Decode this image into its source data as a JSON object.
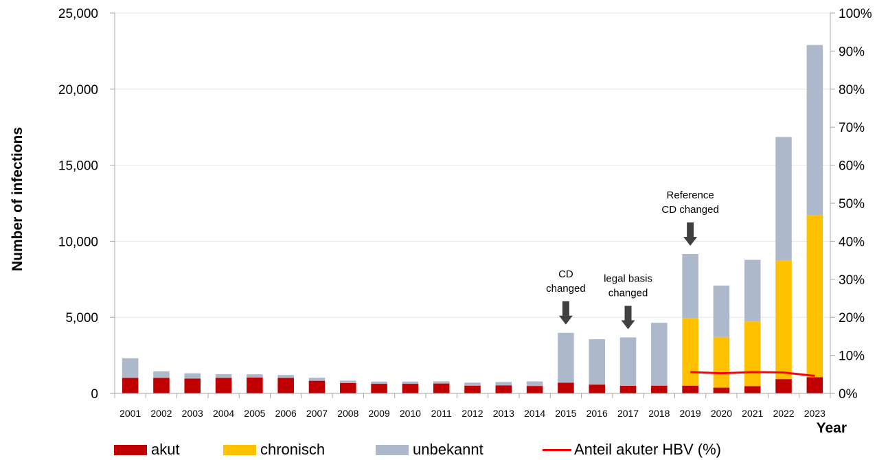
{
  "chart_data": {
    "type": "bar",
    "stacked": true,
    "ylabel": "Number of infections",
    "xlabel": "Year",
    "ylim": [
      0,
      25000
    ],
    "y2lim": [
      0,
      100
    ],
    "yticks": [
      "0",
      "5,000",
      "10,000",
      "15,000",
      "20,000",
      "25,000"
    ],
    "y2ticks": [
      "0%",
      "10%",
      "20%",
      "30%",
      "40%",
      "50%",
      "60%",
      "70%",
      "80%",
      "90%",
      "100%"
    ],
    "categories": [
      "2001",
      "2002",
      "2003",
      "2004",
      "2005",
      "2006",
      "2007",
      "2008",
      "2009",
      "2010",
      "2011",
      "2012",
      "2013",
      "2014",
      "2015",
      "2016",
      "2017",
      "2018",
      "2019",
      "2020",
      "2021",
      "2022",
      "2023"
    ],
    "series": [
      {
        "name": "akut",
        "color": "#c00000",
        "values": [
          1020,
          1020,
          980,
          1020,
          1050,
          1020,
          830,
          680,
          630,
          630,
          650,
          510,
          530,
          490,
          700,
          580,
          500,
          510,
          510,
          380,
          480,
          940,
          1060
        ]
      },
      {
        "name": "chronisch",
        "color": "#ffc000",
        "values": [
          0,
          0,
          0,
          0,
          0,
          0,
          0,
          0,
          0,
          0,
          0,
          0,
          0,
          0,
          0,
          0,
          0,
          0,
          4450,
          3330,
          4250,
          7800,
          10640
        ]
      },
      {
        "name": "unbekannt",
        "color": "#adb9ca",
        "values": [
          1290,
          430,
          340,
          250,
          210,
          190,
          200,
          160,
          150,
          150,
          150,
          200,
          220,
          300,
          3280,
          2980,
          3180,
          4130,
          4200,
          3380,
          4050,
          8110,
          11200
        ]
      }
    ],
    "line_series": {
      "name": "Anteil akuter HBV (%)",
      "color": "#ff0000",
      "axis": "right",
      "x": [
        "2019",
        "2020",
        "2021",
        "2022",
        "2023"
      ],
      "values": [
        5.6,
        5.3,
        5.6,
        5.5,
        4.6
      ]
    },
    "annotations": [
      {
        "year": "2015",
        "lines": [
          "CD",
          "changed"
        ]
      },
      {
        "year": "2017",
        "lines": [
          "legal basis",
          "changed"
        ]
      },
      {
        "year": "2019",
        "lines": [
          "Reference",
          "CD changed"
        ]
      }
    ],
    "legend_position": "bottom",
    "grid": "horizontal"
  }
}
